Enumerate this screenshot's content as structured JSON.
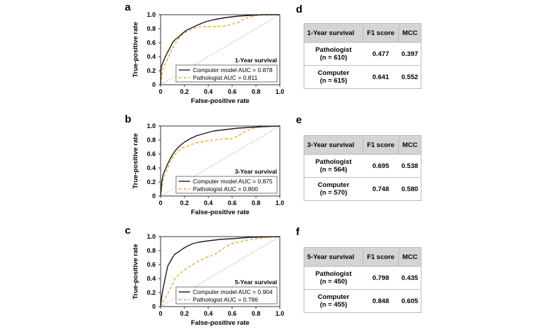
{
  "panel_labels": {
    "a": "a",
    "b": "b",
    "c": "c",
    "d": "d",
    "e": "e",
    "f": "f"
  },
  "colors": {
    "computer": "#1a1a1a",
    "pathologist": "#f4a621",
    "diagonal": "#9a9a9a"
  },
  "chart_data": [
    {
      "type": "line",
      "annotation": "1-Year survival",
      "xlabel": "False-positive rate",
      "ylabel": "True-positive rate",
      "xlim": [
        0,
        1.0
      ],
      "ylim": [
        0,
        1.0
      ],
      "xticks": [
        "0",
        "0.2",
        "0.4",
        "0.6",
        "0.8",
        "1.0"
      ],
      "yticks": [
        "0",
        "0.2",
        "0.4",
        "0.6",
        "0.8",
        "1.0"
      ],
      "legend_position": "bottom-right",
      "series": [
        {
          "name": "Computer model AUC = 0.878",
          "style": "solid",
          "x": [
            0,
            0.005,
            0.02,
            0.04,
            0.06,
            0.08,
            0.1,
            0.12,
            0.15,
            0.18,
            0.22,
            0.27,
            0.32,
            0.38,
            0.45,
            0.55,
            0.65,
            0.75,
            0.85,
            1.0
          ],
          "y": [
            0,
            0.25,
            0.32,
            0.4,
            0.47,
            0.53,
            0.6,
            0.64,
            0.68,
            0.73,
            0.78,
            0.82,
            0.86,
            0.9,
            0.93,
            0.96,
            0.98,
            0.99,
            1.0,
            1.0
          ]
        },
        {
          "name": "Pathologist AUC = 0.811",
          "style": "dashed",
          "x": [
            0,
            0.02,
            0.04,
            0.06,
            0.08,
            0.1,
            0.12,
            0.14,
            0.17,
            0.2,
            0.25,
            0.3,
            0.35,
            0.45,
            0.55,
            0.65,
            0.7,
            0.75,
            0.8,
            1.0
          ],
          "y": [
            0,
            0.24,
            0.3,
            0.37,
            0.44,
            0.52,
            0.58,
            0.63,
            0.7,
            0.74,
            0.78,
            0.82,
            0.83,
            0.83,
            0.84,
            0.89,
            0.94,
            0.97,
            0.99,
            1.0
          ]
        },
        {
          "name": "",
          "style": "dotted",
          "x": [
            0,
            1
          ],
          "y": [
            0,
            1
          ]
        }
      ]
    },
    {
      "type": "line",
      "annotation": "3-Year survival",
      "xlabel": "False-positive rate",
      "ylabel": "True-positive rate",
      "xlim": [
        0,
        1.0
      ],
      "ylim": [
        0,
        1.0
      ],
      "xticks": [
        "0",
        "0.2",
        "0.4",
        "0.6",
        "0.8",
        "1.0"
      ],
      "yticks": [
        "0",
        "0.2",
        "0.4",
        "0.6",
        "0.8",
        "1.0"
      ],
      "legend_position": "bottom-right",
      "series": [
        {
          "name": "Computer model AUC = 0.875",
          "style": "solid",
          "x": [
            0,
            0.01,
            0.02,
            0.04,
            0.06,
            0.08,
            0.1,
            0.12,
            0.14,
            0.17,
            0.2,
            0.25,
            0.3,
            0.38,
            0.45,
            0.55,
            0.65,
            0.75,
            0.85,
            1.0
          ],
          "y": [
            0,
            0.2,
            0.3,
            0.38,
            0.46,
            0.53,
            0.59,
            0.64,
            0.68,
            0.73,
            0.77,
            0.82,
            0.86,
            0.9,
            0.93,
            0.95,
            0.97,
            0.98,
            0.99,
            1.0
          ]
        },
        {
          "name": "Pathologist AUC = 0.800",
          "style": "dashed",
          "x": [
            0,
            0.02,
            0.04,
            0.06,
            0.08,
            0.1,
            0.13,
            0.16,
            0.2,
            0.25,
            0.3,
            0.4,
            0.5,
            0.6,
            0.65,
            0.7,
            0.75,
            0.8,
            0.85,
            1.0
          ],
          "y": [
            0,
            0.22,
            0.32,
            0.4,
            0.48,
            0.55,
            0.61,
            0.66,
            0.7,
            0.73,
            0.76,
            0.79,
            0.81,
            0.82,
            0.86,
            0.91,
            0.95,
            0.98,
            0.99,
            1.0
          ]
        },
        {
          "name": "",
          "style": "dotted",
          "x": [
            0,
            1
          ],
          "y": [
            0,
            1
          ]
        }
      ]
    },
    {
      "type": "line",
      "annotation": "5-Year survival",
      "xlabel": "False-positive rate",
      "ylabel": "True-positive rate",
      "xlim": [
        0,
        1.0
      ],
      "ylim": [
        0,
        1.0
      ],
      "xticks": [
        "0",
        "0.2",
        "0.4",
        "0.6",
        "0.8",
        "1.0"
      ],
      "yticks": [
        "0",
        "0.2",
        "0.4",
        "0.6",
        "0.8",
        "1.0"
      ],
      "legend_position": "bottom-right",
      "series": [
        {
          "name": "Computer model AUC = 0.904",
          "style": "solid",
          "x": [
            0,
            0.01,
            0.02,
            0.03,
            0.04,
            0.05,
            0.06,
            0.08,
            0.1,
            0.12,
            0.15,
            0.18,
            0.22,
            0.27,
            0.32,
            0.4,
            0.5,
            0.6,
            0.75,
            1.0
          ],
          "y": [
            0,
            0.15,
            0.25,
            0.33,
            0.42,
            0.5,
            0.58,
            0.64,
            0.7,
            0.75,
            0.78,
            0.82,
            0.86,
            0.9,
            0.92,
            0.94,
            0.96,
            0.97,
            0.99,
            1.0
          ]
        },
        {
          "name": "Pathologist AUC = 0.786",
          "style": "dashed",
          "x": [
            0,
            0.03,
            0.06,
            0.08,
            0.1,
            0.12,
            0.15,
            0.18,
            0.22,
            0.27,
            0.32,
            0.38,
            0.45,
            0.5,
            0.55,
            0.6,
            0.7,
            0.8,
            0.9,
            1.0
          ],
          "y": [
            0,
            0.1,
            0.18,
            0.25,
            0.32,
            0.4,
            0.45,
            0.5,
            0.55,
            0.6,
            0.65,
            0.7,
            0.74,
            0.8,
            0.86,
            0.9,
            0.94,
            0.97,
            0.99,
            1.0
          ]
        },
        {
          "name": "",
          "style": "dotted",
          "x": [
            0,
            1
          ],
          "y": [
            0,
            1
          ]
        }
      ]
    },
    {
      "type": "table",
      "columns": [
        "1-Year survival",
        "F1 score",
        "MCC"
      ],
      "rows": [
        {
          "label": [
            "Pathologist",
            "(n = 610)"
          ],
          "f1": "0.477",
          "mcc": "0.397"
        },
        {
          "label": [
            "Computer",
            "(n = 615)"
          ],
          "f1": "0.641",
          "mcc": "0.552"
        }
      ]
    },
    {
      "type": "table",
      "columns": [
        "3-Year survival",
        "F1 score",
        "MCC"
      ],
      "rows": [
        {
          "label": [
            "Pathologist",
            "(n = 564)"
          ],
          "f1": "0.695",
          "mcc": "0.538"
        },
        {
          "label": [
            "Computer",
            "(n = 570)"
          ],
          "f1": "0.748",
          "mcc": "0.580"
        }
      ]
    },
    {
      "type": "table",
      "columns": [
        "5-Year survival",
        "F1 score",
        "MCC"
      ],
      "rows": [
        {
          "label": [
            "Pathologist",
            "(n = 450)"
          ],
          "f1": "0.798",
          "mcc": "0.435"
        },
        {
          "label": [
            "Computer",
            "(n = 455)"
          ],
          "f1": "0.848",
          "mcc": "0.605"
        }
      ]
    }
  ]
}
